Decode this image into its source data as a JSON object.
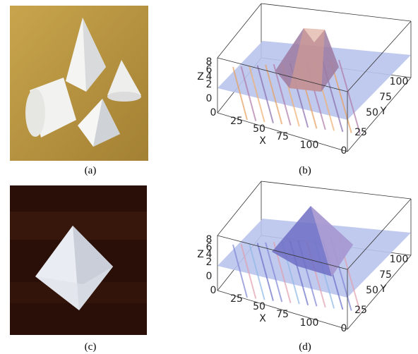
{
  "figure": {
    "panels": [
      {
        "caption": "(a)"
      },
      {
        "caption": "(b)",
        "axes": {
          "z_label": "Z",
          "z_ticks": [
            8,
            6,
            4,
            2,
            0
          ],
          "x_label": "X",
          "x_ticks": [
            0,
            25,
            50,
            75,
            100
          ],
          "y_label": "Y",
          "y_ticks": [
            0,
            25,
            50,
            75,
            100
          ]
        }
      },
      {
        "caption": "(c)"
      },
      {
        "caption": "(d)",
        "axes": {
          "z_label": "Z",
          "z_ticks": [
            8,
            6,
            4,
            2,
            0
          ],
          "x_label": "X",
          "x_ticks": [
            0,
            25,
            50,
            75,
            100
          ],
          "y_label": "Y",
          "y_ticks": [
            0,
            25,
            50,
            75,
            100
          ]
        }
      }
    ]
  }
}
